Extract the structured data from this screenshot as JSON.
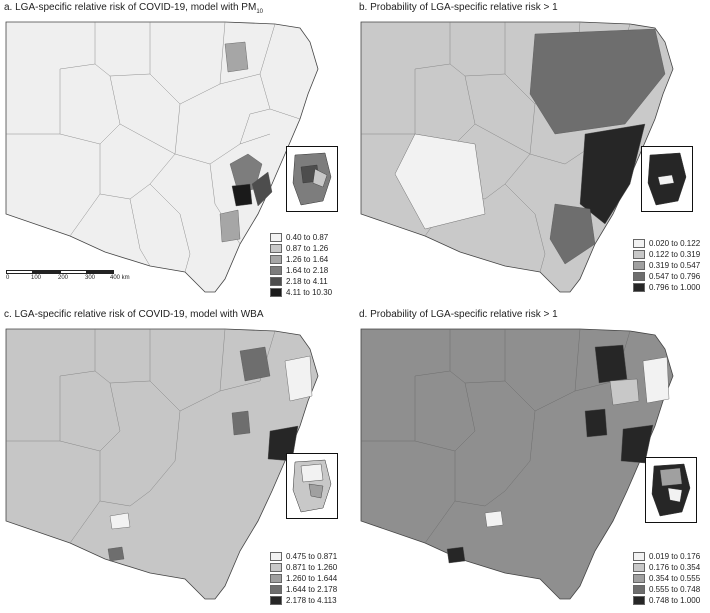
{
  "panels": [
    {
      "title_main": "a. LGA-specific relative risk of COVID-19, model with PM",
      "title_sub": "10",
      "base_color": "#efefef",
      "legend": [
        {
          "label": "0.40 to 0.87",
          "color": "#f2f2f2"
        },
        {
          "label": "0.87 to 1.26",
          "color": "#c8c8c8"
        },
        {
          "label": "1.26 to 1.64",
          "color": "#a6a6a6"
        },
        {
          "label": "1.64 to 2.18",
          "color": "#7d7d7d"
        },
        {
          "label": "2.18 to 4.11",
          "color": "#4d4d4d"
        },
        {
          "label": "4.11 to 10.30",
          "color": "#1a1a1a"
        }
      ]
    },
    {
      "title_main": "b. Probability of LGA-specific relative risk > 1",
      "title_sub": "",
      "base_color": "#c9c9c9",
      "legend": [
        {
          "label": "0.020 to 0.122",
          "color": "#f2f2f2"
        },
        {
          "label": "0.122 to 0.319",
          "color": "#c8c8c8"
        },
        {
          "label": "0.319 to 0.547",
          "color": "#a0a0a0"
        },
        {
          "label": "0.547 to 0.796",
          "color": "#6e6e6e"
        },
        {
          "label": "0.796 to 1.000",
          "color": "#262626"
        }
      ]
    },
    {
      "title_main": "c. LGA-specific relative risk of COVID-19, model with WBA",
      "title_sub": "",
      "base_color": "#c6c6c6",
      "legend": [
        {
          "label": "0.475 to 0.871",
          "color": "#f2f2f2"
        },
        {
          "label": "0.871 to 1.260",
          "color": "#c8c8c8"
        },
        {
          "label": "1.260 to 1.644",
          "color": "#a0a0a0"
        },
        {
          "label": "1.644 to 2.178",
          "color": "#6e6e6e"
        },
        {
          "label": "2.178 to 4.113",
          "color": "#262626"
        }
      ]
    },
    {
      "title_main": "d. Probability of LGA-specific relative risk > 1",
      "title_sub": "",
      "base_color": "#8f8f8f",
      "legend": [
        {
          "label": "0.019 to 0.176",
          "color": "#f2f2f2"
        },
        {
          "label": "0.176 to 0.354",
          "color": "#c8c8c8"
        },
        {
          "label": "0.354 to 0.555",
          "color": "#a0a0a0"
        },
        {
          "label": "0.555 to 0.748",
          "color": "#6e6e6e"
        },
        {
          "label": "0.748 to 1.000",
          "color": "#262626"
        }
      ]
    }
  ],
  "scalebar": {
    "ticks": [
      "0",
      "100",
      "200",
      "300",
      "400 km"
    ]
  }
}
